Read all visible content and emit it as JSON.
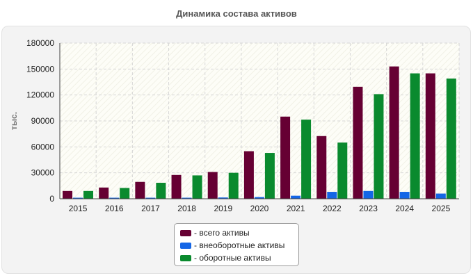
{
  "page_title": "Динамика состава активов",
  "chart_data": {
    "type": "bar",
    "title": "Динамика состава активов",
    "ylabel": "тыс.",
    "xlabel": "",
    "ylim": [
      0,
      180000
    ],
    "yticks": [
      0,
      30000,
      60000,
      90000,
      120000,
      150000,
      180000
    ],
    "grid": true,
    "legend_position": "bottom",
    "categories": [
      "2015",
      "2016",
      "2017",
      "2018",
      "2019",
      "2020",
      "2021",
      "2022",
      "2023",
      "2024",
      "2025"
    ],
    "series": [
      {
        "name": "- всего активы",
        "color": "#660033",
        "values": [
          9000,
          13000,
          19500,
          27500,
          31000,
          55000,
          95000,
          72500,
          129500,
          153000,
          145000
        ]
      },
      {
        "name": "- внеоборотные активы",
        "color": "#1466e6",
        "values": [
          300,
          500,
          800,
          1000,
          1500,
          2000,
          3500,
          8000,
          9000,
          8000,
          6000
        ]
      },
      {
        "name": "- оборотные активы",
        "color": "#0a8a2e",
        "values": [
          9000,
          12500,
          18500,
          27000,
          30000,
          53000,
          91500,
          65000,
          121000,
          145000,
          139000
        ]
      }
    ]
  }
}
